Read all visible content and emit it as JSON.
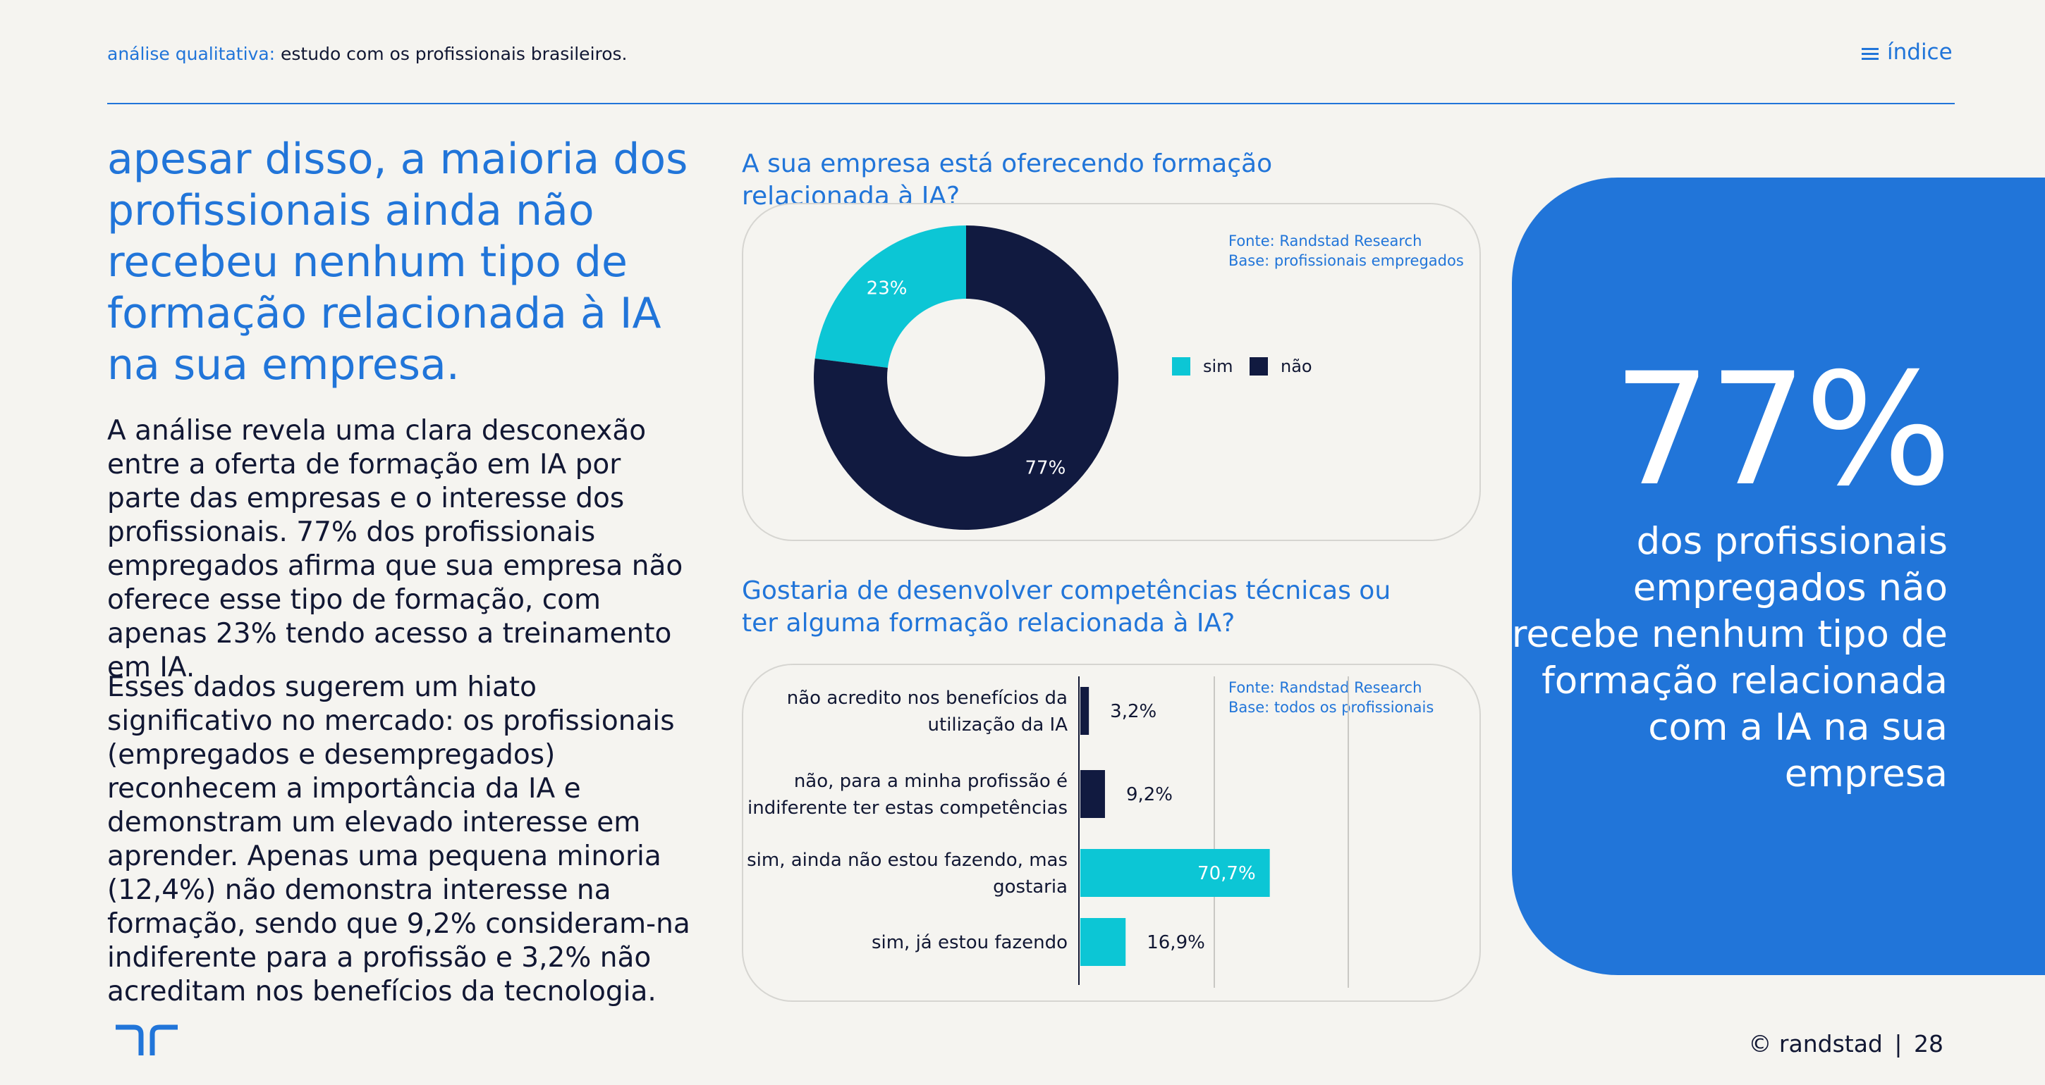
{
  "header": {
    "section_key": "análise qualitativa:",
    "section_value": "estudo com os profissionais brasileiros.",
    "index_label": "índice"
  },
  "headline": "apesar disso, a maioria dos profissionais ainda não recebeu nenhum tipo de formação relacionada à IA na sua empresa.",
  "paragraphs": [
    "A análise revela uma clara desconexão entre a oferta de formação em IA por parte das empresas e o interesse dos profissionais. 77% dos profissionais empregados afirma que sua empresa não oferece esse tipo de formação, com apenas 23% tendo acesso a treinamento em IA.",
    "Esses dados sugerem um hiato significativo no mercado: os profissionais (empregados e desempregados) reconhecem a importância da IA e demonstram um elevado interesse em aprender. Apenas uma pequena minoria (12,4%) não demonstra interesse na formação, sendo que 9,2% consideram-na indiferente para a profissão e 3,2% não acreditam nos benefícios da tecnologia."
  ],
  "highlight": {
    "value": "77%",
    "text": "dos profissionais empregados não recebe nenhum tipo de formação relacionada com a IA na sua empresa"
  },
  "footer": {
    "text": "© randstad",
    "separator": "|",
    "page": "28"
  },
  "colors": {
    "accent_blue": "#2175d9",
    "navy": "#111a40",
    "cyan": "#0cc6d5",
    "background": "#f5f4f0"
  },
  "icons": [
    "menu-icon",
    "randstad-logo"
  ],
  "chart_data": [
    {
      "type": "pie",
      "variant": "donut",
      "title": "A sua empresa está oferecendo formação relacionada à IA?",
      "source_line1": "Fonte: Randstad Research",
      "source_line2": "Base: profissionais empregados",
      "legend_position": "right",
      "slices": [
        {
          "name": "sim",
          "value": 23,
          "label": "23%",
          "color": "#0cc6d5"
        },
        {
          "name": "não",
          "value": 77,
          "label": "77%",
          "color": "#111a40"
        }
      ]
    },
    {
      "type": "bar",
      "orientation": "horizontal",
      "title": "Gostaria de desenvolver competências técnicas ou ter alguma formação relacionada à IA?",
      "source_line1": "Fonte: Randstad Research",
      "source_line2": "Base: todos os profissionais",
      "xlim": [
        0,
        100
      ],
      "grid": true,
      "categories": [
        [
          "não acredito nos benefícios da",
          "utilização da IA"
        ],
        [
          "não, para a minha profissão é",
          "indiferente ter estas competências"
        ],
        [
          "sim, ainda não estou fazendo, mas",
          "gostaria"
        ],
        [
          "sim, já estou fazendo"
        ]
      ],
      "values": [
        3.2,
        9.2,
        70.7,
        16.9
      ],
      "labels": [
        "3,2%",
        "9,2%",
        "70,7%",
        "16,9%"
      ],
      "colors": [
        "#111a40",
        "#111a40",
        "#0cc6d5",
        "#0cc6d5"
      ]
    }
  ]
}
